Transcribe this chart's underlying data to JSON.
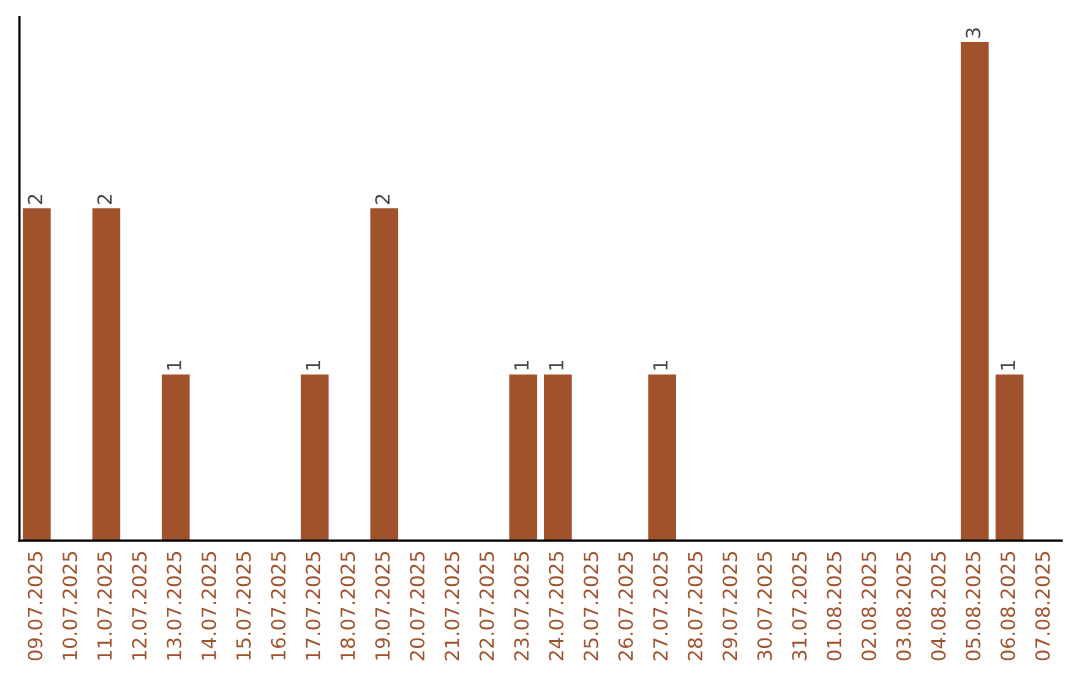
{
  "chart_data": {
    "type": "bar",
    "categories": [
      "09.07.2025",
      "10.07.2025",
      "11.07.2025",
      "12.07.2025",
      "13.07.2025",
      "14.07.2025",
      "15.07.2025",
      "16.07.2025",
      "17.07.2025",
      "18.07.2025",
      "19.07.2025",
      "20.07.2025",
      "21.07.2025",
      "22.07.2025",
      "23.07.2025",
      "24.07.2025",
      "25.07.2025",
      "26.07.2025",
      "27.07.2025",
      "28.07.2025",
      "29.07.2025",
      "30.07.2025",
      "31.07.2025",
      "01.08.2025",
      "02.08.2025",
      "03.08.2025",
      "04.08.2025",
      "05.08.2025",
      "06.08.2025",
      "07.08.2025"
    ],
    "values": [
      2,
      0,
      2,
      0,
      1,
      0,
      0,
      0,
      1,
      0,
      2,
      0,
      0,
      0,
      1,
      1,
      0,
      0,
      1,
      0,
      0,
      0,
      0,
      0,
      0,
      0,
      0,
      3,
      1,
      0
    ],
    "value_labels": [
      "2",
      null,
      "2",
      null,
      "1",
      null,
      null,
      null,
      "1",
      null,
      "2",
      null,
      null,
      null,
      "1",
      "1",
      null,
      null,
      "1",
      null,
      null,
      null,
      null,
      null,
      null,
      null,
      null,
      "3",
      "1",
      null
    ],
    "color": "#a0522d",
    "tick_labels": "x",
    "grid": false,
    "legend": false
  }
}
